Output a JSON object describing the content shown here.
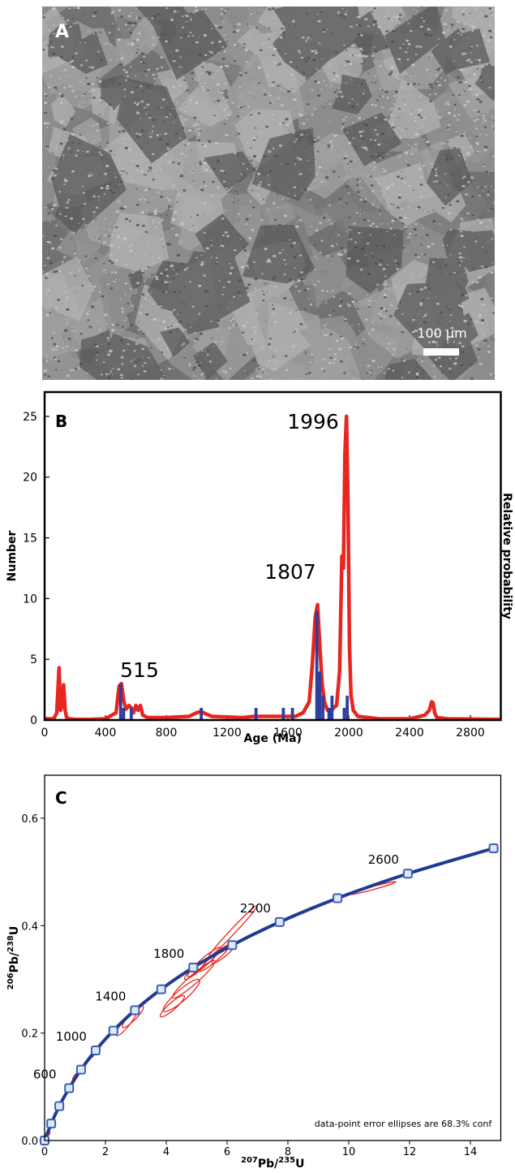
{
  "image_panel": {
    "label": "A",
    "scale_bar_label": "100 µm"
  },
  "chart_data": [
    {
      "type": "histogram",
      "panel_label": "B",
      "x_label": "Age (Ma)",
      "y_label": "Number",
      "y2_label": "Relative probability",
      "annotations": [
        "515",
        "1807",
        "1996"
      ],
      "xlim": [
        0,
        3000
      ],
      "xticks": [
        0,
        400,
        800,
        1200,
        1600,
        2000,
        2400,
        2800
      ],
      "ylim": [
        0,
        27
      ],
      "yticks": [
        0,
        5,
        10,
        15,
        20,
        25
      ],
      "bars": {
        "color": "#2e3e9c",
        "x_start": [
          490,
          510,
          560,
          1020,
          1380,
          1560,
          1620,
          1780,
          1800,
          1820,
          1860,
          1880,
          1960,
          1980
        ],
        "x_end": [
          510,
          530,
          580,
          1040,
          1400,
          1580,
          1640,
          1800,
          1820,
          1840,
          1880,
          1900,
          1980,
          2000
        ],
        "values": [
          3,
          1,
          1,
          1,
          1,
          1,
          1,
          9,
          4,
          2,
          1,
          2,
          1,
          2
        ]
      },
      "curve": {
        "color": "#e8251f",
        "x": [
          0,
          60,
          80,
          95,
          105,
          115,
          125,
          135,
          145,
          160,
          200,
          300,
          400,
          470,
          490,
          505,
          520,
          535,
          555,
          570,
          585,
          600,
          615,
          630,
          645,
          680,
          800,
          950,
          1000,
          1030,
          1060,
          1100,
          1300,
          1380,
          1450,
          1550,
          1650,
          1700,
          1740,
          1760,
          1780,
          1795,
          1810,
          1825,
          1840,
          1860,
          1880,
          1900,
          1920,
          1940,
          1955,
          1965,
          1975,
          1985,
          1995,
          2005,
          2015,
          2030,
          2060,
          2200,
          2400,
          2500,
          2530,
          2545,
          2555,
          2565,
          2580,
          2650,
          3000
        ],
        "y": [
          0.1,
          0.1,
          0.6,
          4.3,
          0.8,
          1.2,
          2.9,
          0.8,
          0.2,
          0.1,
          0.05,
          0.05,
          0.1,
          0.6,
          2.8,
          3.0,
          1.6,
          0.9,
          1.2,
          1.0,
          0.6,
          1.2,
          0.8,
          1.2,
          0.4,
          0.2,
          0.2,
          0.3,
          0.6,
          0.7,
          0.5,
          0.3,
          0.2,
          0.3,
          0.3,
          0.3,
          0.3,
          0.6,
          1.5,
          4.5,
          8.5,
          9.5,
          6.0,
          3.0,
          1.5,
          0.8,
          0.7,
          1.0,
          1.2,
          4.0,
          13.5,
          12.5,
          22,
          25,
          18,
          6,
          2,
          0.8,
          0.3,
          0.1,
          0.1,
          0.4,
          0.8,
          1.5,
          1.4,
          0.6,
          0.2,
          0.1,
          0.05
        ]
      }
    },
    {
      "type": "concordia",
      "panel_label": "C",
      "x_label_parts": [
        "207",
        "Pb/",
        "235",
        "U"
      ],
      "y_label_parts": [
        "206",
        "Pb/",
        "238",
        "U"
      ],
      "note": "data-point error ellipses are 68.3% conf",
      "xlim": [
        0,
        15
      ],
      "xticks": [
        0,
        2,
        4,
        6,
        8,
        10,
        12,
        14
      ],
      "ylim": [
        0,
        0.68
      ],
      "yticks": [
        {
          "value": 0,
          "label": "0.0"
        },
        0.2,
        0.4,
        0.6
      ],
      "concordia": {
        "color": "#1f3a93",
        "ages": [
          0,
          200,
          400,
          600,
          800,
          1000,
          1200,
          1400,
          1600,
          1800,
          2000,
          2200,
          2400,
          2600,
          2800
        ],
        "x": [
          0,
          0.2177,
          0.4828,
          0.8056,
          1.1987,
          1.6774,
          2.2603,
          2.9701,
          3.8344,
          4.8869,
          6.1685,
          7.729,
          9.629,
          11.943,
          14.762
        ],
        "y": [
          0,
          0.0315,
          0.064,
          0.0975,
          0.1321,
          0.1678,
          0.2046,
          0.2426,
          0.2817,
          0.3221,
          0.3638,
          0.4067,
          0.4511,
          0.4968,
          0.544
        ]
      },
      "age_labels": [
        600,
        1000,
        1400,
        1800,
        2200,
        2600
      ],
      "ellipses": {
        "color": "#e8251f",
        "x": [
          10.8,
          6.2,
          5.2,
          5.6,
          4.9,
          4.5,
          4.2,
          5.0,
          5.9,
          2.9,
          2.7,
          0.85,
          1.6,
          1.0,
          0.1
        ],
        "y": [
          0.47,
          0.39,
          0.33,
          0.34,
          0.3,
          0.27,
          0.25,
          0.32,
          0.35,
          0.23,
          0.22,
          0.1,
          0.16,
          0.12,
          0.01
        ],
        "x_err": [
          0.75,
          0.8,
          0.6,
          0.5,
          0.7,
          0.6,
          0.4,
          0.3,
          0.4,
          0.35,
          0.35,
          0.1,
          0.08,
          0.08,
          0.08
        ],
        "y_err": [
          0.012,
          0.048,
          0.03,
          0.025,
          0.035,
          0.03,
          0.02,
          0.015,
          0.02,
          0.02,
          0.025,
          0.008,
          0.006,
          0.006,
          0.006
        ],
        "rho": [
          0.97,
          0.99,
          0.95,
          0.95,
          0.95,
          0.9,
          0.9,
          0.9,
          0.9,
          0.9,
          0.9,
          0.9,
          0.9,
          0.9,
          0.9
        ]
      }
    }
  ]
}
